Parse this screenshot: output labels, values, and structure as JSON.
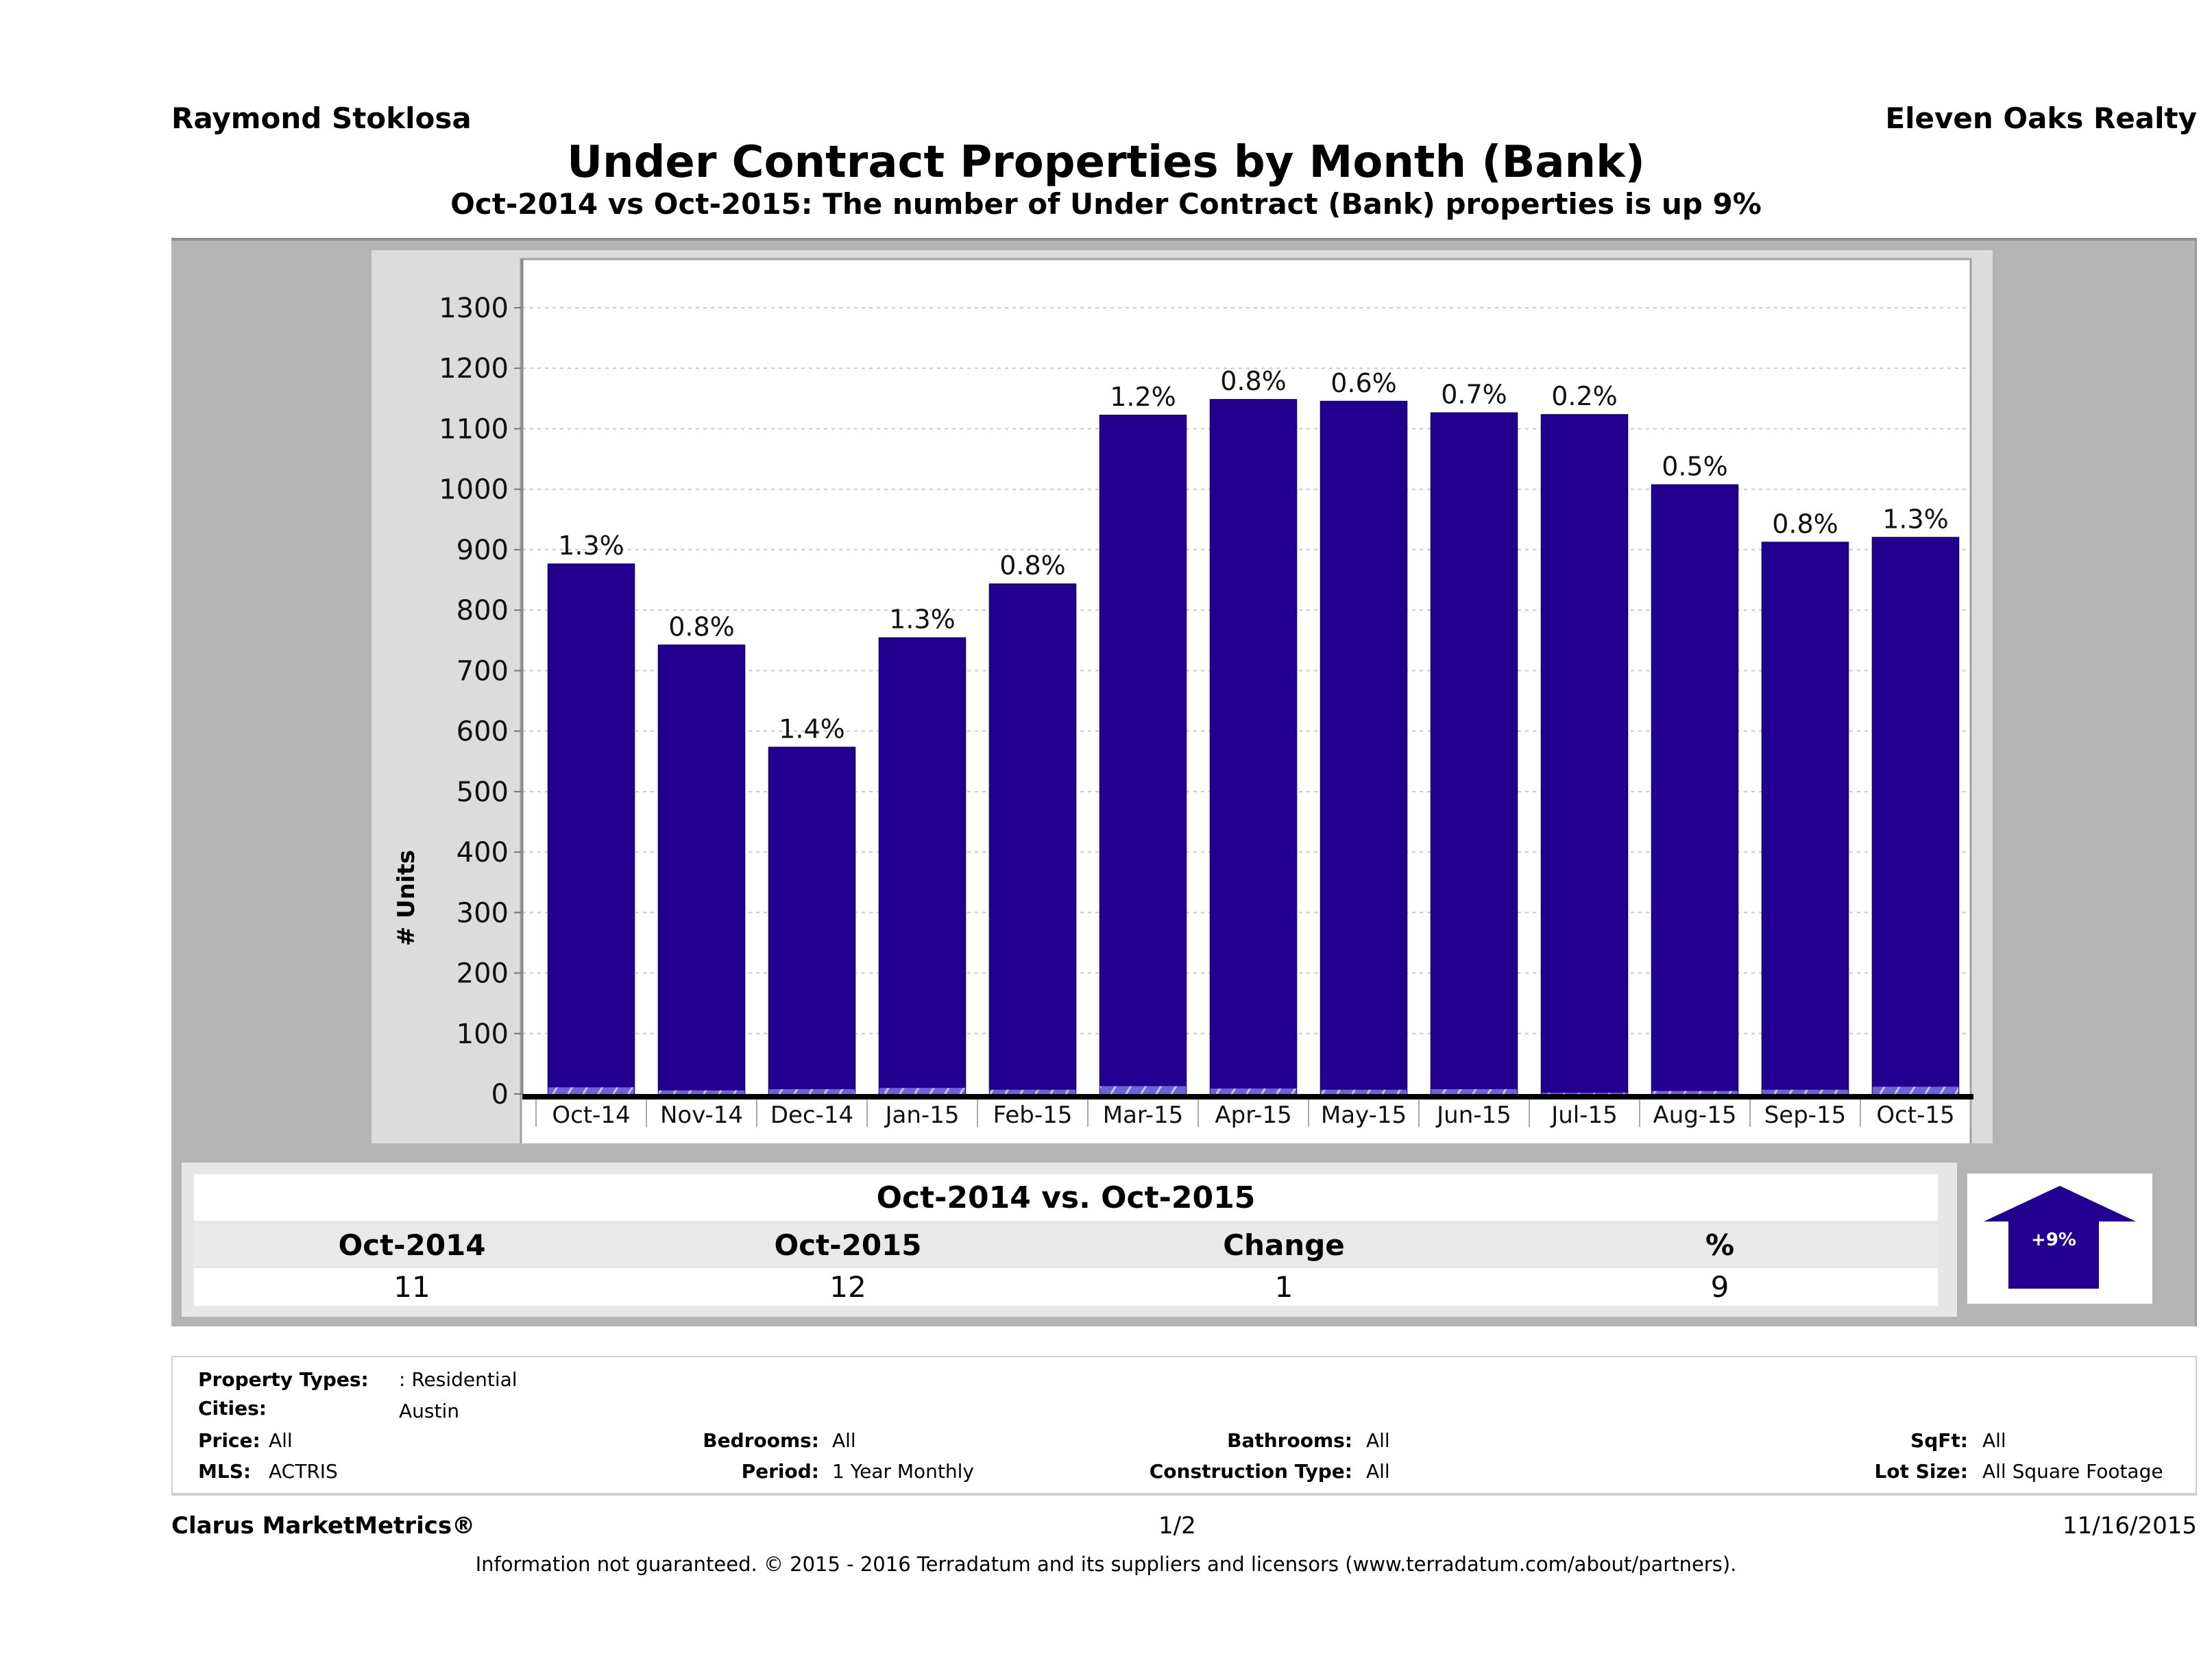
{
  "header": {
    "agent_name": "Raymond Stoklosa",
    "company": "Eleven Oaks Realty",
    "title": "Under Contract Properties by Month (Bank)",
    "subtitle": "Oct-2014 vs Oct-2015: The number of Under Contract (Bank)  properties is up 9%"
  },
  "colors": {
    "bar": "#240090",
    "bank_overlay": "#8a7fe6",
    "frame": "#b4b4b4",
    "panel": "#dcdcdc"
  },
  "chart_data": {
    "type": "bar",
    "title": "Under Contract Properties by Month (Bank)",
    "xlabel": "",
    "ylabel": "# Units",
    "ylim": [
      0,
      1300
    ],
    "yticks": [
      0,
      100,
      200,
      300,
      400,
      500,
      600,
      700,
      800,
      900,
      1000,
      1100,
      1200,
      1300
    ],
    "grid": true,
    "categories": [
      "Oct-14",
      "Nov-14",
      "Dec-14",
      "Jan-15",
      "Feb-15",
      "Mar-15",
      "Apr-15",
      "May-15",
      "Jun-15",
      "Jul-15",
      "Aug-15",
      "Sep-15",
      "Oct-15"
    ],
    "series": [
      {
        "name": "Total Under Contract",
        "values": [
          876,
          742,
          573,
          754,
          843,
          1122,
          1148,
          1145,
          1126,
          1123,
          1007,
          912,
          920
        ]
      },
      {
        "name": "Bank Under Contract",
        "values": [
          11,
          6,
          8,
          10,
          7,
          13,
          9,
          7,
          8,
          2,
          5,
          7,
          12
        ]
      }
    ],
    "data_labels": [
      "1.3%",
      "0.8%",
      "1.4%",
      "1.3%",
      "0.8%",
      "1.2%",
      "0.8%",
      "0.6%",
      "0.7%",
      "0.2%",
      "0.5%",
      "0.8%",
      "1.3%"
    ]
  },
  "summary": {
    "heading": "Oct-2014 vs. Oct-2015",
    "columns": [
      "Oct-2014",
      "Oct-2015",
      "Change",
      "%"
    ],
    "values": [
      "11",
      "12",
      "1",
      "9"
    ],
    "arrow_label": "+9%",
    "arrow_direction": "up"
  },
  "criteria": {
    "property_types_label": "Property Types:",
    "property_types_value": ": Residential",
    "cities_label": "Cities:",
    "cities_value": "Austin",
    "price_label": "Price:",
    "price_value": "All",
    "bedrooms_label": "Bedrooms:",
    "bedrooms_value": "All",
    "bathrooms_label": "Bathrooms:",
    "bathrooms_value": "All",
    "sqft_label": "SqFt:",
    "sqft_value": "All",
    "mls_label": "MLS:",
    "mls_value": "ACTRIS",
    "period_label": "Period:",
    "period_value": "1 Year Monthly",
    "construction_label": "Construction Type:",
    "construction_value": "All",
    "lot_label": "Lot Size:",
    "lot_value": "All Square Footage"
  },
  "footer": {
    "brand": "Clarus MarketMetrics®",
    "page": "1/2",
    "date": "11/16/2015",
    "disclaimer": "Information not guaranteed. © 2015 - 2016 Terradatum and its suppliers and licensors (www.terradatum.com/about/partners)."
  }
}
